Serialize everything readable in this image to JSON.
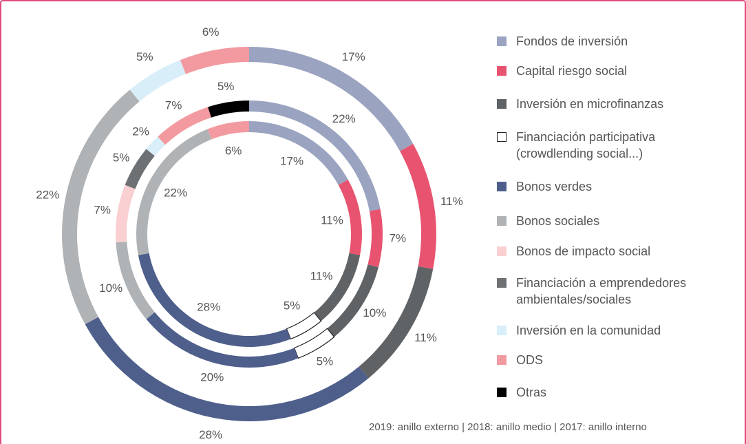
{
  "chart_data": {
    "type": "multi-donut",
    "categories": [
      "Fondos de inversión",
      "Capital riesgo social",
      "Inversión en microfinanzas",
      "Financiación participativa (crowdlending social...)",
      "Bonos verdes",
      "Bonos sociales",
      "Bonos de impacto social",
      "Financiación a emprendedores ambientales/sociales",
      "Inversión en la comunidad",
      "ODS",
      "Otras"
    ],
    "colors": [
      "#9aa3c0",
      "#e8546f",
      "#5f6366",
      "#ffffff",
      "#4e5f8c",
      "#b0b3b6",
      "#f9cfd2",
      "#6e7174",
      "#d8eef8",
      "#f29aa0",
      "#000000"
    ],
    "series": [
      {
        "values": [
          17,
          11,
          11,
          null,
          28,
          22,
          null,
          null,
          5,
          6,
          null
        ],
        "value_labels": [
          "17%",
          "11%",
          "11%",
          null,
          "28%",
          "22%",
          null,
          null,
          "5%",
          "6%",
          null
        ]
      },
      {
        "values": [
          22,
          7,
          10,
          5,
          20,
          10,
          7,
          5,
          2,
          7,
          5
        ],
        "value_labels": [
          "22%",
          "7%",
          "10%",
          "5%",
          "20%",
          "10%",
          "7%",
          "5%",
          "2%",
          "7%",
          "5%"
        ]
      },
      {
        "values": [
          17,
          11,
          11,
          5,
          28,
          22,
          null,
          null,
          null,
          6,
          null
        ],
        "value_labels": [
          "17%",
          "11%",
          "11%",
          "5%",
          "28%",
          "22%",
          null,
          null,
          null,
          "6%",
          null
        ]
      }
    ],
    "note": "2019: anillo externo | 2018: anillo medio | 2017: anillo interno"
  }
}
